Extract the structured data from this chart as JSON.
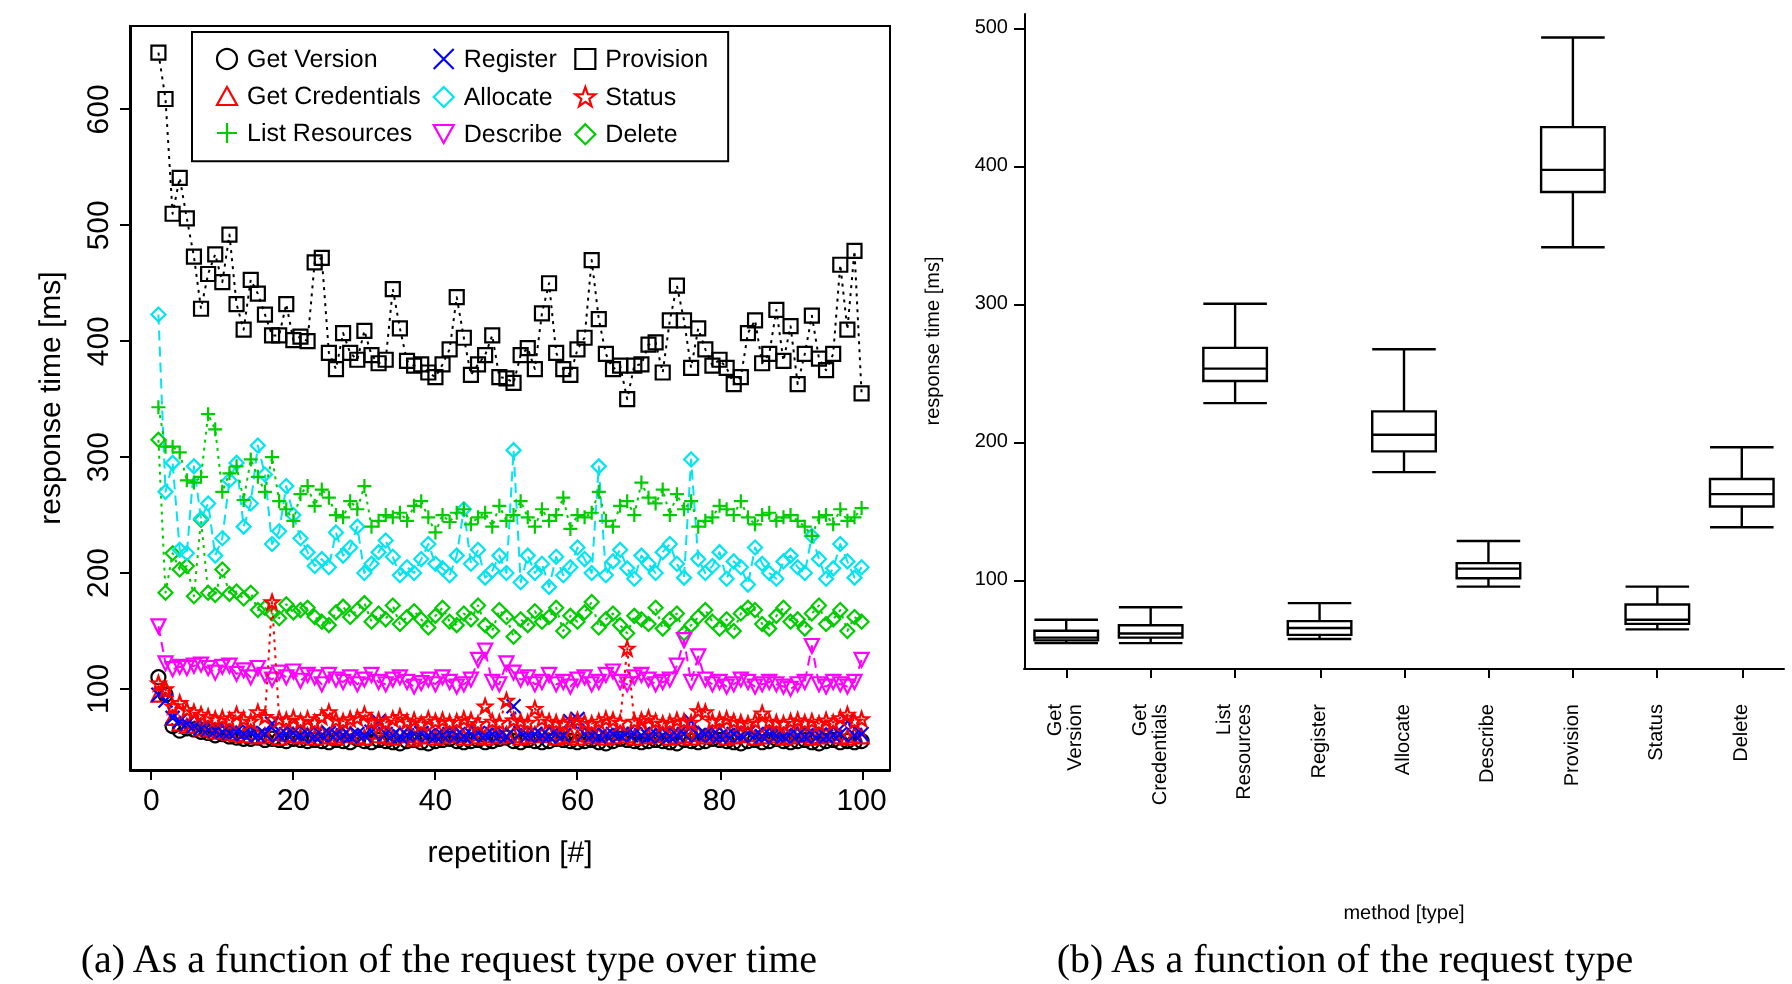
{
  "chart_data": [
    {
      "type": "line",
      "xlabel": "repetition [#]",
      "ylabel": "response time [ms]",
      "annotations": [
        "(a) As a function of the request type over time"
      ],
      "legend": "top",
      "grid": false,
      "xlim": [
        -3,
        104
      ],
      "xticks": [
        0,
        20,
        40,
        60,
        80,
        100
      ],
      "ylim": [
        30,
        672
      ],
      "yticks": [
        100,
        200,
        300,
        400,
        500,
        600
      ],
      "x": [
        1,
        2,
        3,
        4,
        5,
        6,
        7,
        8,
        9,
        10,
        11,
        12,
        13,
        14,
        15,
        16,
        17,
        18,
        19,
        20,
        21,
        22,
        23,
        24,
        25,
        26,
        27,
        28,
        29,
        30,
        31,
        32,
        33,
        34,
        35,
        36,
        37,
        38,
        39,
        40,
        41,
        42,
        43,
        44,
        45,
        46,
        47,
        48,
        49,
        50,
        51,
        52,
        53,
        54,
        55,
        56,
        57,
        58,
        59,
        60,
        61,
        62,
        63,
        64,
        65,
        66,
        67,
        68,
        69,
        70,
        71,
        72,
        73,
        74,
        75,
        76,
        77,
        78,
        79,
        80,
        81,
        82,
        83,
        84,
        85,
        86,
        87,
        88,
        89,
        90,
        91,
        92,
        93,
        94,
        95,
        96,
        97,
        98,
        99,
        100
      ],
      "series": [
        {
          "name": "Get Version",
          "color": "#000000",
          "marker": "circle",
          "line_style": "dotted",
          "values": [
            110,
            95,
            68,
            64,
            66,
            65,
            63,
            62,
            60,
            61,
            59,
            58,
            57,
            57,
            58,
            56,
            57,
            56,
            55,
            57,
            56,
            55,
            56,
            55,
            54,
            56,
            55,
            54,
            57,
            55,
            54,
            56,
            55,
            54,
            53,
            55,
            56,
            54,
            53,
            55,
            56,
            57,
            55,
            54,
            55,
            56,
            54,
            55,
            57,
            58,
            55,
            54,
            56,
            55,
            54,
            55,
            57,
            56,
            55,
            54,
            55,
            56,
            54,
            53,
            55,
            57,
            56,
            55,
            54,
            55,
            56,
            55,
            54,
            53,
            56,
            55,
            54,
            55,
            57,
            56,
            55,
            54,
            53,
            55,
            56,
            54,
            55,
            57,
            55,
            54,
            55,
            56,
            54,
            53,
            55,
            56,
            54,
            55,
            54,
            55
          ]
        },
        {
          "name": "Get Credentials",
          "color": "#ff0000",
          "marker": "triangle",
          "line_style": "dotted",
          "values": [
            95,
            100,
            75,
            70,
            68,
            72,
            66,
            65,
            63,
            64,
            62,
            61,
            60,
            63,
            59,
            60,
            62,
            58,
            61,
            60,
            59,
            60,
            58,
            62,
            59,
            58,
            60,
            61,
            59,
            58,
            63,
            60,
            59,
            58,
            61,
            60,
            57,
            59,
            60,
            58,
            59,
            61,
            60,
            58,
            62,
            59,
            58,
            60,
            59,
            61,
            60,
            58,
            59,
            61,
            60,
            62,
            58,
            59,
            60,
            58,
            61,
            59,
            60,
            58,
            59,
            62,
            60,
            58,
            66,
            59,
            60,
            61,
            58,
            59,
            60,
            58,
            61,
            59,
            60,
            62,
            58,
            59,
            60,
            61,
            58,
            59,
            62,
            60,
            58,
            59,
            61,
            60,
            58,
            59,
            60,
            62,
            59,
            58,
            60,
            59
          ]
        },
        {
          "name": "List Resources",
          "color": "#00cd00",
          "marker": "cross",
          "line_style": "dotted",
          "values": [
            343,
            309,
            309,
            304,
            280,
            278,
            283,
            337,
            324,
            270,
            286,
            292,
            263,
            298,
            283,
            270,
            300,
            262,
            255,
            245,
            268,
            275,
            258,
            272,
            265,
            250,
            248,
            262,
            255,
            275,
            240,
            245,
            250,
            248,
            252,
            245,
            258,
            262,
            248,
            235,
            250,
            244,
            252,
            255,
            242,
            248,
            252,
            240,
            258,
            245,
            250,
            262,
            248,
            240,
            255,
            245,
            250,
            265,
            238,
            250,
            248,
            252,
            270,
            245,
            240,
            258,
            262,
            250,
            278,
            265,
            260,
            272,
            250,
            268,
            255,
            262,
            240,
            245,
            248,
            258,
            255,
            250,
            262,
            248,
            242,
            250,
            252,
            245,
            248,
            250,
            245,
            240,
            232,
            248,
            250,
            242,
            255,
            245,
            248,
            256
          ]
        },
        {
          "name": "Register",
          "color": "#0000ff",
          "marker": "x",
          "line_style": "dotted",
          "values": [
            95,
            90,
            75,
            72,
            70,
            68,
            66,
            65,
            64,
            63,
            62,
            63,
            61,
            62,
            60,
            61,
            70,
            60,
            61,
            62,
            60,
            61,
            59,
            60,
            62,
            61,
            60,
            59,
            61,
            60,
            63,
            72,
            61,
            60,
            59,
            60,
            61,
            62,
            60,
            59,
            60,
            61,
            60,
            59,
            61,
            62,
            60,
            61,
            60,
            59,
            85,
            62,
            60,
            61,
            60,
            59,
            61,
            60,
            72,
            74,
            61,
            60,
            59,
            60,
            61,
            60,
            62,
            61,
            60,
            59,
            61,
            60,
            59,
            60,
            61,
            72,
            60,
            61,
            60,
            59,
            60,
            61,
            60,
            62,
            60,
            59,
            61,
            60,
            59,
            61,
            60,
            59,
            61,
            60,
            59,
            60,
            61,
            72,
            60,
            61
          ]
        },
        {
          "name": "Allocate",
          "color": "#00e5ee",
          "marker": "diamond",
          "line_style": "dashed",
          "values": [
            423,
            270,
            295,
            220,
            217,
            292,
            247,
            260,
            215,
            230,
            280,
            295,
            240,
            260,
            310,
            285,
            225,
            236,
            275,
            250,
            230,
            218,
            206,
            212,
            205,
            235,
            215,
            222,
            240,
            200,
            208,
            218,
            228,
            214,
            198,
            205,
            200,
            212,
            225,
            208,
            204,
            198,
            215,
            255,
            208,
            220,
            196,
            202,
            215,
            200,
            306,
            192,
            215,
            200,
            208,
            188,
            214,
            198,
            205,
            222,
            212,
            200,
            292,
            198,
            210,
            220,
            204,
            195,
            215,
            208,
            200,
            218,
            225,
            208,
            196,
            298,
            212,
            200,
            206,
            218,
            195,
            210,
            205,
            190,
            222,
            208,
            200,
            195,
            210,
            215,
            205,
            200,
            232,
            212,
            195,
            204,
            225,
            210,
            196,
            205
          ]
        },
        {
          "name": "Describe",
          "color": "#ff00ff",
          "marker": "triangle-down",
          "line_style": "dashed",
          "values": [
            154,
            122,
            117,
            119,
            118,
            120,
            121,
            118,
            114,
            119,
            120,
            113,
            116,
            110,
            118,
            112,
            108,
            114,
            110,
            115,
            107,
            112,
            110,
            104,
            112,
            108,
            106,
            110,
            104,
            108,
            112,
            106,
            104,
            108,
            110,
            106,
            102,
            105,
            108,
            104,
            110,
            106,
            102,
            104,
            108,
            125,
            133,
            106,
            104,
            122,
            114,
            108,
            110,
            104,
            106,
            112,
            104,
            106,
            102,
            108,
            110,
            104,
            106,
            112,
            115,
            106,
            104,
            110,
            112,
            108,
            104,
            106,
            108,
            120,
            142,
            106,
            128,
            108,
            104,
            106,
            102,
            104,
            108,
            106,
            102,
            104,
            106,
            104,
            102,
            100,
            104,
            106,
            137,
            104,
            102,
            106,
            104,
            102,
            106,
            125
          ]
        },
        {
          "name": "Provision",
          "color": "#000000",
          "marker": "square",
          "line_style": "dotted",
          "values": [
            649,
            609,
            510,
            541,
            506,
            473,
            428,
            458,
            475,
            451,
            492,
            432,
            410,
            453,
            441,
            423,
            405,
            405,
            432,
            401,
            404,
            400,
            468,
            472,
            390,
            376,
            407,
            390,
            384,
            409,
            388,
            381,
            384,
            445,
            411,
            383,
            379,
            380,
            373,
            369,
            380,
            393,
            438,
            403,
            371,
            380,
            388,
            405,
            369,
            368,
            364,
            388,
            394,
            376,
            424,
            450,
            390,
            376,
            371,
            393,
            403,
            470,
            419,
            389,
            376,
            379,
            350,
            379,
            380,
            397,
            399,
            373,
            418,
            448,
            418,
            377,
            411,
            393,
            379,
            384,
            377,
            363,
            369,
            407,
            418,
            381,
            389,
            427,
            383,
            413,
            363,
            389,
            422,
            385,
            375,
            389,
            466,
            410,
            478,
            355
          ]
        },
        {
          "name": "Status",
          "color": "#ff0000",
          "marker": "star",
          "line_style": "dotted",
          "values": [
            105,
            100,
            85,
            88,
            82,
            80,
            78,
            76,
            74,
            75,
            73,
            78,
            74,
            72,
            80,
            76,
            175,
            74,
            73,
            75,
            72,
            74,
            71,
            76,
            80,
            73,
            72,
            74,
            75,
            78,
            72,
            73,
            71,
            74,
            76,
            72,
            73,
            70,
            74,
            72,
            73,
            71,
            72,
            74,
            73,
            70,
            85,
            72,
            71,
            90,
            73,
            72,
            71,
            83,
            74,
            72,
            71,
            70,
            72,
            73,
            71,
            70,
            72,
            74,
            73,
            71,
            135,
            72,
            73,
            75,
            72,
            70,
            71,
            73,
            72,
            71,
            81,
            80,
            72,
            73,
            74,
            72,
            71,
            70,
            72,
            79,
            72,
            71,
            70,
            72,
            73,
            71,
            72,
            70,
            73,
            71,
            75,
            78,
            72,
            74
          ]
        },
        {
          "name": "Delete",
          "color": "#00cd00",
          "marker": "diamond",
          "line_style": "dotted",
          "values": [
            315,
            183,
            217,
            203,
            206,
            180,
            246,
            183,
            181,
            203,
            182,
            184,
            178,
            183,
            168,
            170,
            165,
            161,
            173,
            166,
            168,
            170,
            162,
            158,
            155,
            166,
            171,
            162,
            168,
            174,
            158,
            165,
            160,
            172,
            156,
            162,
            167,
            160,
            153,
            163,
            170,
            158,
            155,
            165,
            160,
            172,
            155,
            150,
            168,
            162,
            145,
            160,
            155,
            167,
            158,
            162,
            170,
            150,
            163,
            158,
            166,
            175,
            153,
            160,
            165,
            155,
            148,
            163,
            160,
            156,
            170,
            152,
            160,
            165,
            148,
            155,
            162,
            168,
            158,
            152,
            160,
            150,
            165,
            170,
            168,
            156,
            152,
            163,
            170,
            158,
            160,
            152,
            165,
            172,
            156,
            160,
            168,
            150,
            162,
            158
          ]
        }
      ]
    },
    {
      "type": "box",
      "xlabel": "method [type]",
      "ylabel": "response time [ms]",
      "annotations": [
        "(b) As a function of the request type"
      ],
      "grid": false,
      "legend": false,
      "ylim": [
        36,
        510
      ],
      "yticks": [
        100,
        200,
        300,
        400,
        500
      ],
      "categories": [
        "Get Version",
        "Get Credentials",
        "List Resources",
        "Register",
        "Allocate",
        "Describe",
        "Provision",
        "Status",
        "Delete"
      ],
      "boxes": [
        {
          "low": 54,
          "q1": 56,
          "median": 58,
          "q3": 63,
          "high": 71
        },
        {
          "low": 54,
          "q1": 58,
          "median": 61,
          "q3": 67,
          "high": 80
        },
        {
          "low": 228,
          "q1": 244,
          "median": 253,
          "q3": 268,
          "high": 300
        },
        {
          "low": 57,
          "q1": 60,
          "median": 65,
          "q3": 70,
          "high": 83
        },
        {
          "low": 178,
          "q1": 193,
          "median": 205,
          "q3": 222,
          "high": 267
        },
        {
          "low": 95,
          "q1": 101,
          "median": 108,
          "q3": 112,
          "high": 128
        },
        {
          "low": 341,
          "q1": 381,
          "median": 397,
          "q3": 428,
          "high": 493
        },
        {
          "low": 64,
          "q1": 68,
          "median": 71,
          "q3": 82,
          "high": 95
        },
        {
          "low": 138,
          "q1": 153,
          "median": 162,
          "q3": 173,
          "high": 196
        }
      ]
    }
  ]
}
